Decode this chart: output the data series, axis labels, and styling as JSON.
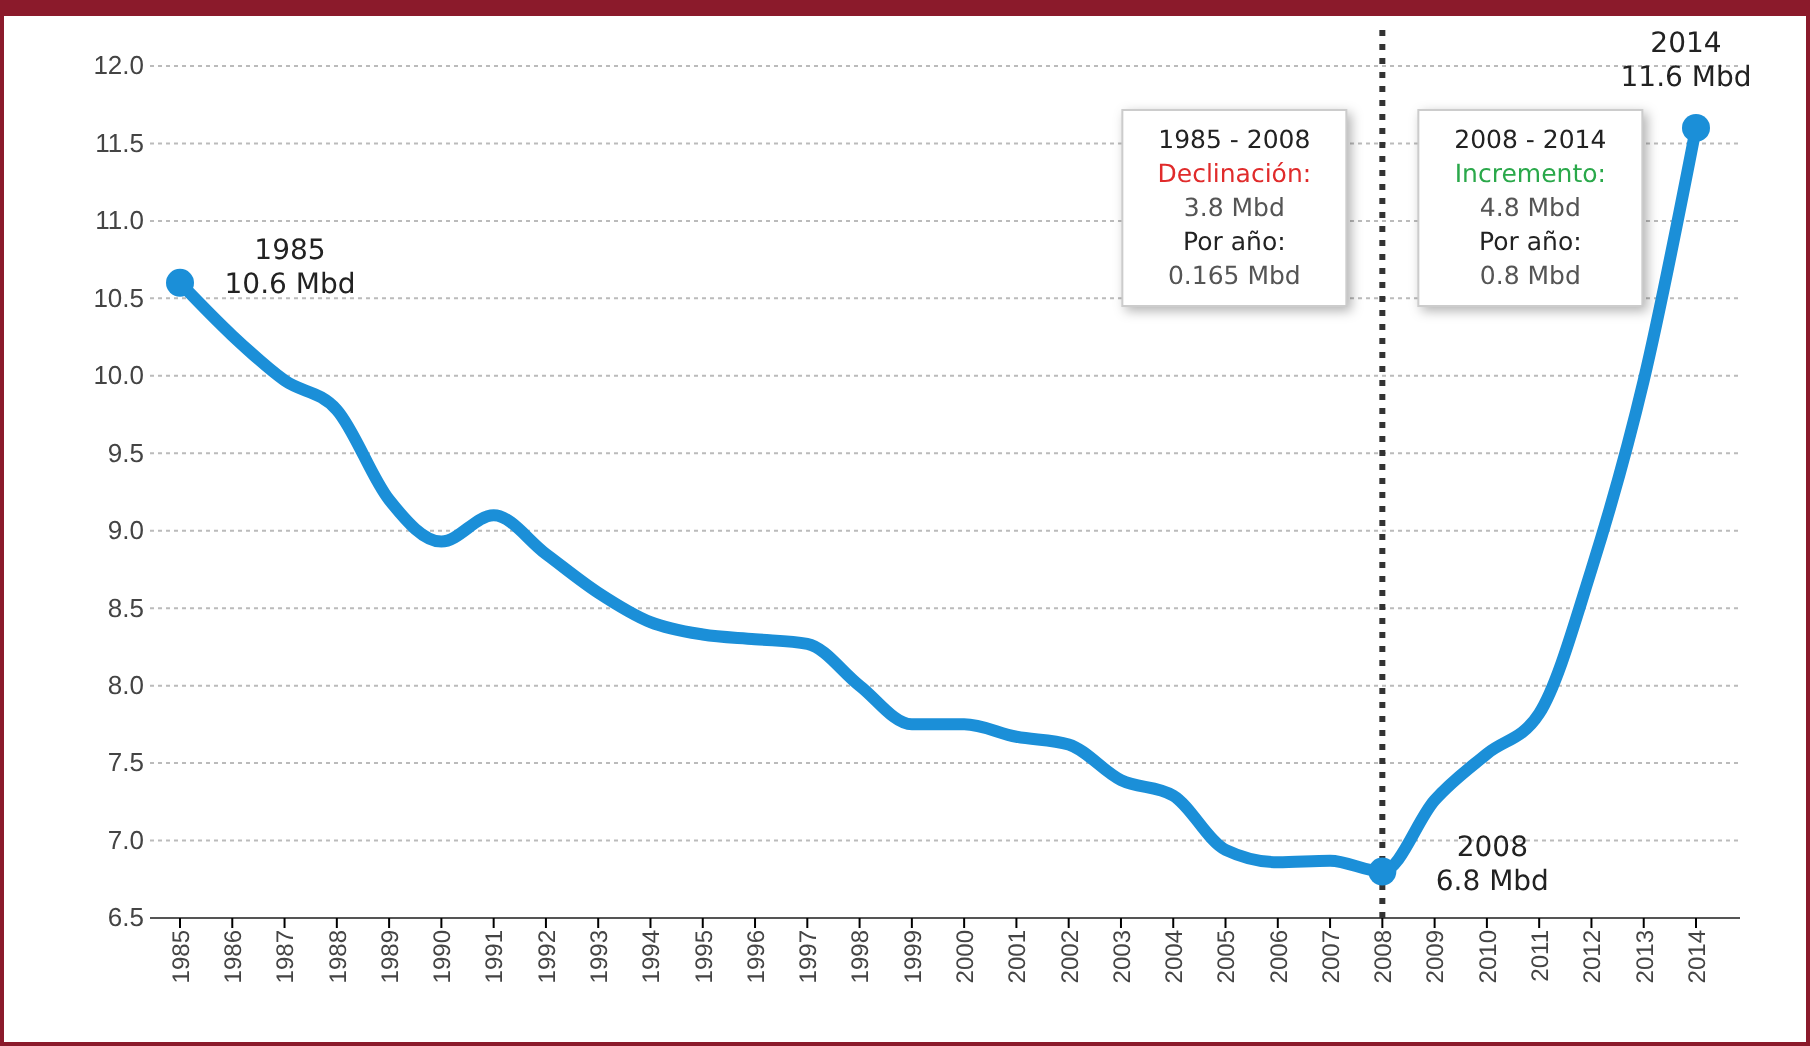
{
  "chart_data": {
    "type": "line",
    "categories": [
      "1985",
      "1986",
      "1987",
      "1988",
      "1989",
      "1990",
      "1991",
      "1992",
      "1993",
      "1994",
      "1995",
      "1996",
      "1997",
      "1998",
      "1999",
      "2000",
      "2001",
      "2002",
      "2003",
      "2004",
      "2005",
      "2006",
      "2007",
      "2008",
      "2009",
      "2010",
      "2011",
      "2012",
      "2013",
      "2014"
    ],
    "series": [
      {
        "color": "#1b8fd8",
        "values": [
          10.6,
          10.26,
          9.97,
          9.78,
          9.2,
          8.93,
          9.1,
          8.85,
          8.6,
          8.41,
          8.33,
          8.3,
          8.27,
          8.0,
          7.75,
          7.75,
          7.67,
          7.62,
          7.39,
          7.29,
          6.94,
          6.86,
          6.87,
          6.8,
          7.26,
          7.56,
          7.82,
          8.75,
          9.97,
          11.6
        ]
      },
      {
        "type": "scatter",
        "color": "#1b8fd8",
        "values": [
          10.6,
          null,
          null,
          null,
          null,
          null,
          null,
          null,
          null,
          null,
          null,
          null,
          null,
          null,
          null,
          null,
          null,
          null,
          null,
          null,
          null,
          null,
          null,
          6.8,
          null,
          null,
          null,
          null,
          null,
          11.6
        ]
      }
    ],
    "ylim": [
      6.5,
      12
    ],
    "yticks": [
      {
        "value": 6.5,
        "label": "6.5"
      },
      {
        "value": 7,
        "label": "7.0"
      },
      7.5,
      {
        "value": 8,
        "label": "8.0"
      },
      8.5,
      {
        "value": 9,
        "label": "9.0"
      },
      9.5,
      {
        "value": 10,
        "label": "10.0"
      },
      10.5,
      {
        "value": 11,
        "label": "11.0"
      },
      11.5,
      {
        "value": 12,
        "label": "12.0"
      }
    ],
    "grid": "y",
    "line_style": "solid",
    "ref_lines": [
      {
        "axis": "x",
        "value": "2008",
        "color": "#333333",
        "line_style": "dotted"
      }
    ],
    "annotations": [
      {
        "text": "1985\n10.6 Mbd",
        "x": "1985",
        "y": 10.6
      },
      {
        "text": "2008\n6.8 Mbd",
        "x": "2008",
        "y": 6.8
      },
      {
        "text": "2014\n11.6 Mbd",
        "x": "2014",
        "y": 11.6
      },
      "1985 - 2008\nDeclinación:\n3.8 Mbd\nPor año:\n0.165 Mbd",
      "2008 - 2014\nIncremento:\n4.8 Mbd\nPor año:\n0.8 Mbd"
    ]
  }
}
